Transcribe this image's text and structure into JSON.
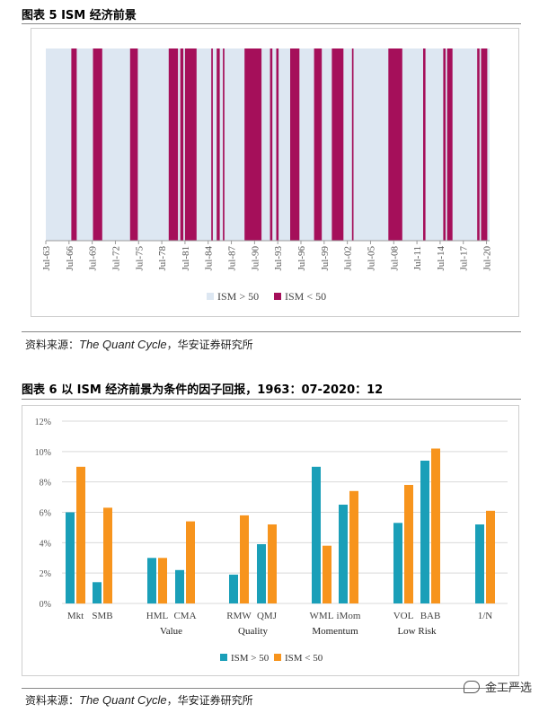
{
  "figure5": {
    "title": "图表 5 ISM 经济前景",
    "source_prefix": "资料来源：",
    "source_italic": "The Quant Cycle",
    "source_suffix": "，华安证券研究所",
    "chart_data": {
      "type": "area",
      "x_ticks": [
        "Jul-63",
        "Jul-66",
        "Jul-69",
        "Jul-72",
        "Jul-75",
        "Jul-78",
        "Jul-81",
        "Jul-84",
        "Jul-87",
        "Jul-90",
        "Jul-93",
        "Jul-96",
        "Jul-99",
        "Jul-02",
        "Jul-05",
        "Jul-08",
        "Jul-11",
        "Jul-14",
        "Jul-17",
        "Jul-20"
      ],
      "x_range": [
        1963.5,
        2020.9
      ],
      "legend": [
        "ISM > 50",
        "ISM < 50"
      ],
      "colors": {
        "above": "#dde7f2",
        "below": "#a50f5a"
      },
      "below_50_periods": [
        [
          1966.8,
          1967.5
        ],
        [
          1969.6,
          1970.8
        ],
        [
          1974.4,
          1975.4
        ],
        [
          1979.4,
          1980.6
        ],
        [
          1980.9,
          1981.3
        ],
        [
          1981.5,
          1983.0
        ],
        [
          1984.9,
          1985.1
        ],
        [
          1985.6,
          1986.0
        ],
        [
          1986.4,
          1986.6
        ],
        [
          1989.2,
          1991.4
        ],
        [
          1992.5,
          1992.8
        ],
        [
          1993.3,
          1993.6
        ],
        [
          1995.1,
          1996.3
        ],
        [
          1998.2,
          1999.2
        ],
        [
          2000.5,
          2002.0
        ],
        [
          2003.1,
          2003.3
        ],
        [
          2007.8,
          2009.6
        ],
        [
          2012.3,
          2012.6
        ],
        [
          2014.9,
          2015.2
        ],
        [
          2015.4,
          2016.1
        ],
        [
          2019.3,
          2019.6
        ],
        [
          2019.8,
          2020.6
        ]
      ]
    }
  },
  "figure6": {
    "title": "图表 6 以 ISM 经济前景为条件的因子回报，1963：07-2020：12",
    "source_prefix": "资料来源：",
    "source_italic": "The Quant Cycle",
    "source_suffix": "，华安证券研究所",
    "chart_data": {
      "type": "bar",
      "categories": [
        "Mkt",
        "SMB",
        "HML",
        "CMA",
        "RMW",
        "QMJ",
        "WML",
        "iMom",
        "VOL",
        "BAB",
        "1/N"
      ],
      "groups": [
        {
          "label": "",
          "members": [
            "Mkt",
            "SMB"
          ]
        },
        {
          "label": "Value",
          "members": [
            "HML",
            "CMA"
          ]
        },
        {
          "label": "Quality",
          "members": [
            "RMW",
            "QMJ"
          ]
        },
        {
          "label": "Momentum",
          "members": [
            "WML",
            "iMom"
          ]
        },
        {
          "label": "Low Risk",
          "members": [
            "VOL",
            "BAB"
          ]
        },
        {
          "label": "",
          "members": [
            "1/N"
          ]
        }
      ],
      "series": [
        {
          "name": "ISM > 50",
          "color": "#1a9fb8",
          "values": [
            6.0,
            1.4,
            3.0,
            2.2,
            1.9,
            3.9,
            9.0,
            6.5,
            5.3,
            9.4,
            5.2
          ]
        },
        {
          "name": "ISM < 50",
          "color": "#f7941d",
          "values": [
            9.0,
            6.3,
            3.0,
            5.4,
            5.8,
            5.2,
            3.8,
            7.4,
            7.8,
            10.2,
            6.1
          ]
        }
      ],
      "ylim": [
        0,
        12
      ],
      "y_ticks": [
        "0%",
        "2%",
        "4%",
        "6%",
        "8%",
        "10%",
        "12%"
      ]
    }
  },
  "watermark": {
    "text": "金工严选",
    "icon": "wechat-icon"
  }
}
